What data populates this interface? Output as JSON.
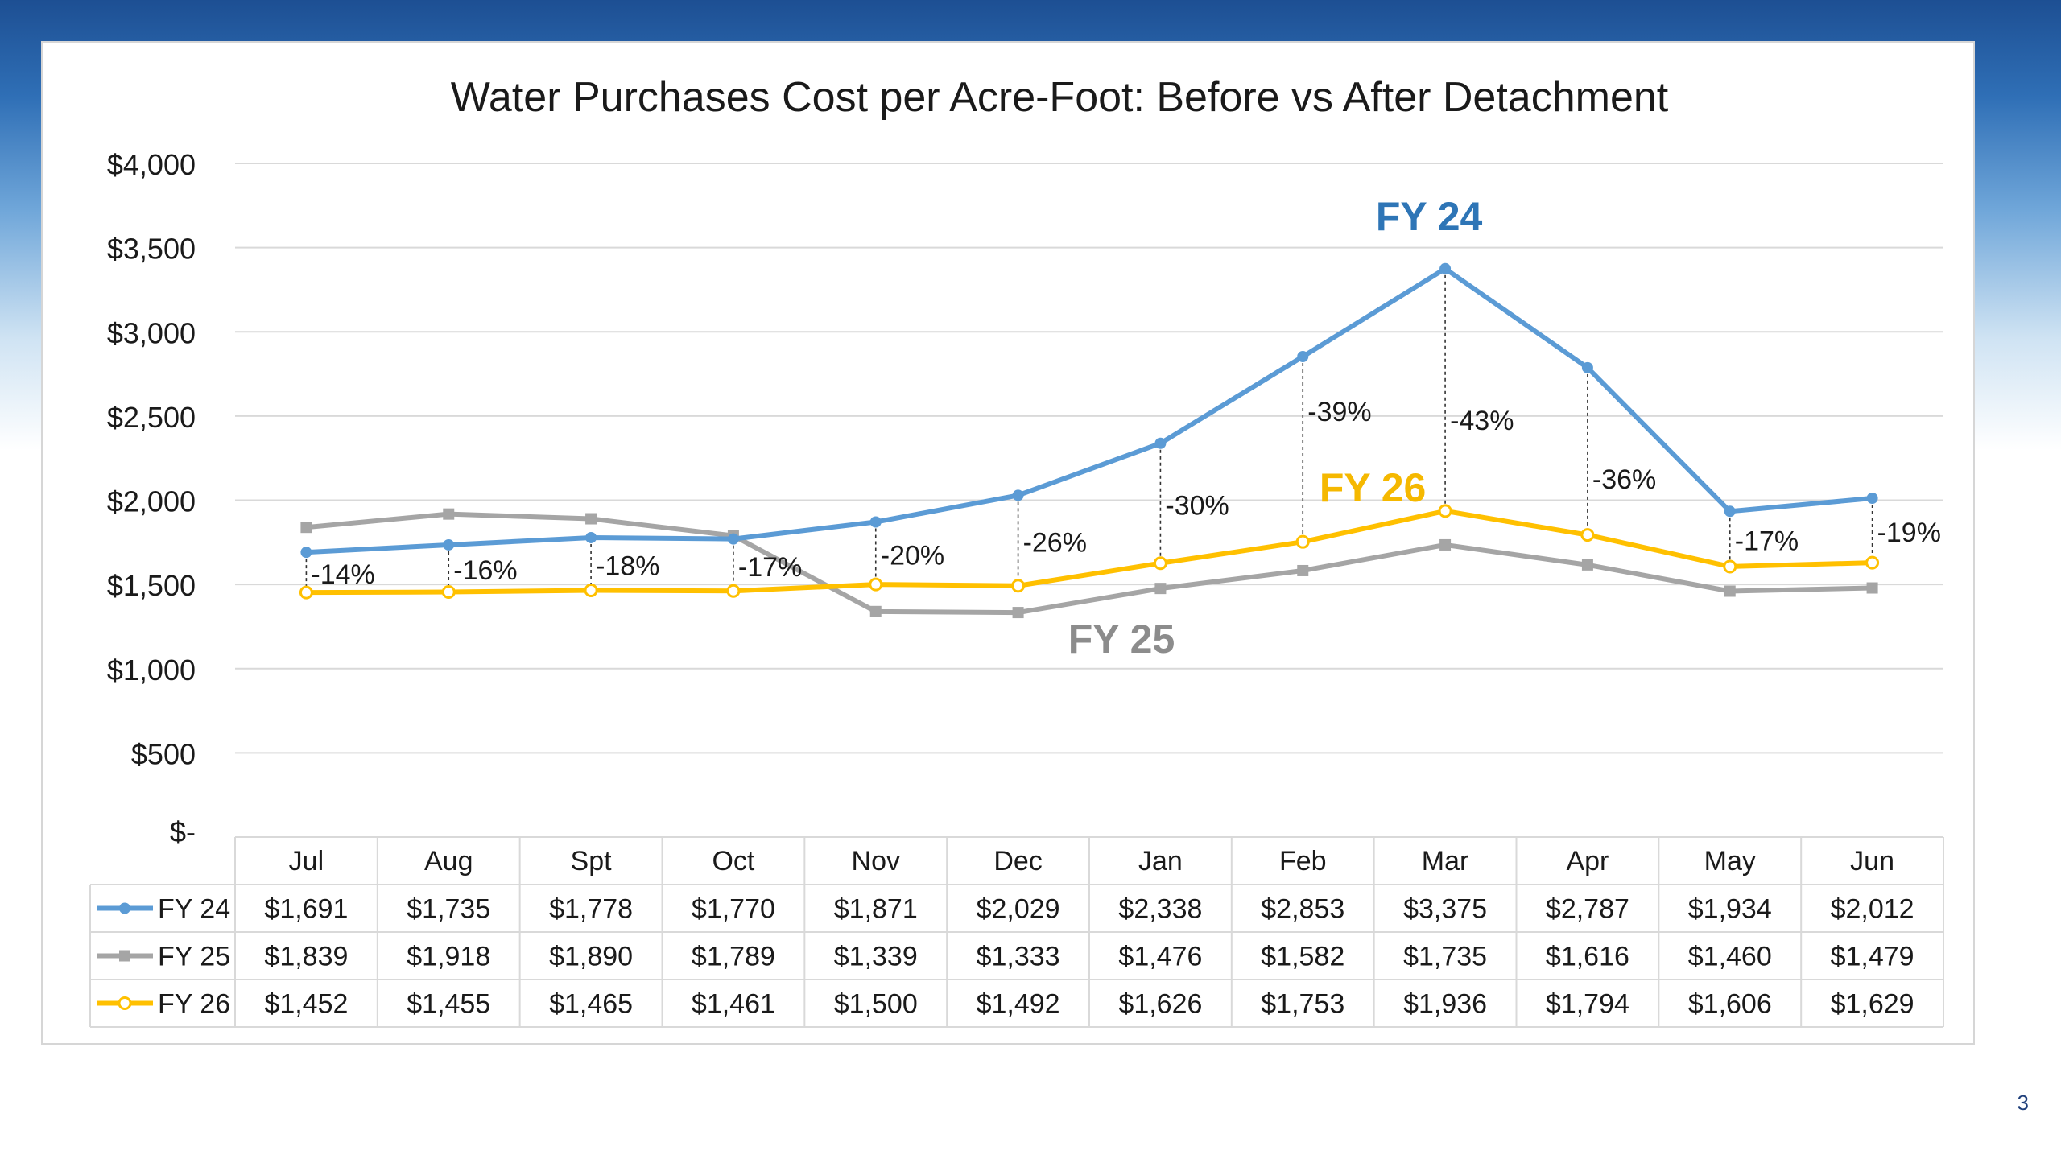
{
  "page_number": "3",
  "colors": {
    "fy24": "#5b9bd5",
    "fy24_label": "#2e75b6",
    "fy25": "#a5a5a5",
    "fy25_label": "#8c8c8c",
    "fy26": "#ffc000",
    "fy26_label": "#f5b800",
    "grid": "#d9d9d9",
    "text": "#1a1a1a"
  },
  "chart_data": {
    "type": "line",
    "title": "Water Purchases Cost per Acre-Foot: Before vs After Detachment",
    "xlabel": "",
    "ylabel": "",
    "ylim": [
      0,
      4000
    ],
    "yticks": [
      {
        "value": 0,
        "label": "$-"
      },
      {
        "value": 500,
        "label": "$500"
      },
      {
        "value": 1000,
        "label": "$1,000"
      },
      {
        "value": 1500,
        "label": "$1,500"
      },
      {
        "value": 2000,
        "label": "$2,000"
      },
      {
        "value": 2500,
        "label": "$2,500"
      },
      {
        "value": 3000,
        "label": "$3,000"
      },
      {
        "value": 3500,
        "label": "$3,500"
      },
      {
        "value": 4000,
        "label": "$4,000"
      }
    ],
    "grid": true,
    "categories": [
      "Jul",
      "Aug",
      "Spt",
      "Oct",
      "Nov",
      "Dec",
      "Jan",
      "Feb",
      "Mar",
      "Apr",
      "May",
      "Jun"
    ],
    "series": [
      {
        "name": "FY 24",
        "key": "fy24",
        "marker": "circle",
        "values": [
          1691,
          1735,
          1778,
          1770,
          1871,
          2029,
          2338,
          2853,
          3375,
          2787,
          1934,
          2012
        ],
        "cells": [
          "$1,691",
          "$1,735",
          "$1,778",
          "$1,770",
          "$1,871",
          "$2,029",
          "$2,338",
          "$2,853",
          "$3,375",
          "$2,787",
          "$1,934",
          "$2,012"
        ],
        "annotation": "FY 24"
      },
      {
        "name": "FY 25",
        "key": "fy25",
        "marker": "square",
        "values": [
          1839,
          1918,
          1890,
          1789,
          1339,
          1333,
          1476,
          1582,
          1735,
          1616,
          1460,
          1479
        ],
        "cells": [
          "$1,839",
          "$1,918",
          "$1,890",
          "$1,789",
          "$1,339",
          "$1,333",
          "$1,476",
          "$1,582",
          "$1,735",
          "$1,616",
          "$1,460",
          "$1,479"
        ],
        "annotation": "FY 25"
      },
      {
        "name": "FY 26",
        "key": "fy26",
        "marker": "hollow-circle",
        "values": [
          1452,
          1455,
          1465,
          1461,
          1500,
          1492,
          1626,
          1753,
          1936,
          1794,
          1606,
          1629
        ],
        "cells": [
          "$1,452",
          "$1,455",
          "$1,465",
          "$1,461",
          "$1,500",
          "$1,492",
          "$1,626",
          "$1,753",
          "$1,936",
          "$1,794",
          "$1,606",
          "$1,629"
        ],
        "annotation": "FY 26"
      }
    ],
    "pct_change": [
      "-14%",
      "-16%",
      "-18%",
      "-17%",
      "-20%",
      "-26%",
      "-30%",
      "-39%",
      "-43%",
      "-36%",
      "-17%",
      "-19%"
    ],
    "legend": "data-table"
  }
}
